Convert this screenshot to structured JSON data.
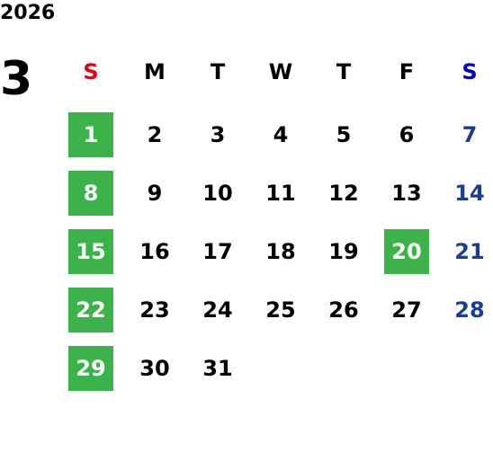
{
  "year": "2026",
  "month": "3",
  "weekdays": [
    "S",
    "M",
    "T",
    "W",
    "T",
    "F",
    "S"
  ],
  "weeks": [
    [
      {
        "label": "1",
        "highlight": true
      },
      {
        "label": "2"
      },
      {
        "label": "3"
      },
      {
        "label": "4"
      },
      {
        "label": "5"
      },
      {
        "label": "6"
      },
      {
        "label": "7"
      }
    ],
    [
      {
        "label": "8",
        "highlight": true
      },
      {
        "label": "9"
      },
      {
        "label": "10"
      },
      {
        "label": "11"
      },
      {
        "label": "12"
      },
      {
        "label": "13"
      },
      {
        "label": "14"
      }
    ],
    [
      {
        "label": "15",
        "highlight": true
      },
      {
        "label": "16"
      },
      {
        "label": "17"
      },
      {
        "label": "18"
      },
      {
        "label": "19"
      },
      {
        "label": "20",
        "highlight": true
      },
      {
        "label": "21"
      }
    ],
    [
      {
        "label": "22",
        "highlight": true
      },
      {
        "label": "23"
      },
      {
        "label": "24"
      },
      {
        "label": "25"
      },
      {
        "label": "26"
      },
      {
        "label": "27"
      },
      {
        "label": "28"
      }
    ],
    [
      {
        "label": "29",
        "highlight": true
      },
      {
        "label": "30"
      },
      {
        "label": "31"
      },
      null,
      null,
      null,
      null
    ]
  ]
}
